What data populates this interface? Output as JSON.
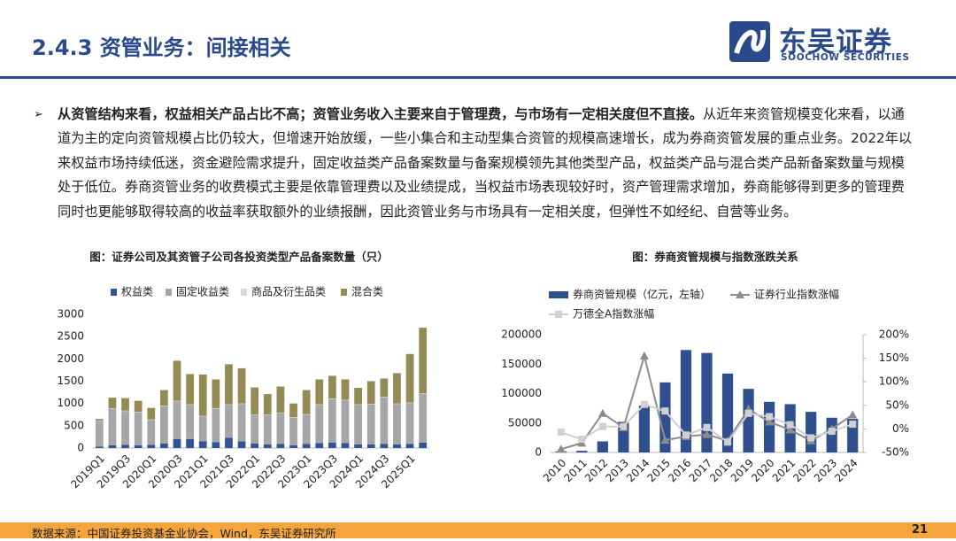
{
  "header": {
    "title": "2.4.3 资管业务：间接相关",
    "logo_cn": "东吴证券",
    "logo_en": "SOOCHOW SECURITIES"
  },
  "body": {
    "bold": "从资管结构来看，权益相关产品占比不高；资管业务收入主要来自于管理费，与市场有一定相关度但不直接。",
    "text": "从近年来资管规模变化来看，以通道为主的定向资管规模占比仍较大，但增速开始放缓，一些小集合和主动型集合资管的规模高速增长，成为券商资管发展的重点业务。2022年以来权益市场持续低迷，资金避险需求提升，固定收益类产品备案数量与备案规模领先其他类型产品，权益类产品与混合类产品新备案数量与规模处于低位。券商资管业务的收费模式主要是依靠管理费以及业绩提成，当权益市场表现较好时，资产管理需求增加，券商能够得到更多的管理费同时也更能够取得较高的收益率获取额外的业绩报酬，因此资管业务与市场具有一定相关度，但弹性不如经纪、自营等业务。"
  },
  "chart_data": [
    {
      "type": "stacked_bar",
      "title": "图：证券公司及其资管子公司各投资类型产品备案数量（只）",
      "categories": [
        "2019Q1",
        null,
        "2019Q3",
        null,
        "2020Q1",
        null,
        "2020Q3",
        null,
        "2021Q1",
        null,
        "2021Q3",
        null,
        "2022Q1",
        null,
        "2022Q3",
        null,
        "2023Q1",
        null,
        "2023Q3",
        null,
        "2024Q1",
        null,
        "2024Q3",
        null,
        "2025Q1",
        null
      ],
      "series": [
        {
          "name": "权益类",
          "color": "#2f5597",
          "values": [
            30,
            60,
            70,
            60,
            70,
            100,
            200,
            200,
            150,
            130,
            230,
            150,
            100,
            80,
            90,
            60,
            90,
            110,
            120,
            110,
            80,
            80,
            90,
            80,
            90,
            120
          ]
        },
        {
          "name": "固定收益类",
          "color": "#a6a6a6",
          "values": [
            570,
            820,
            760,
            740,
            560,
            840,
            850,
            770,
            560,
            750,
            740,
            840,
            640,
            660,
            690,
            620,
            660,
            860,
            980,
            960,
            890,
            900,
            1050,
            910,
            920,
            1100
          ]
        },
        {
          "name": "商品及衍生品类",
          "color": "#d9d9d9",
          "values": [
            10,
            10,
            10,
            10,
            10,
            10,
            10,
            10,
            10,
            10,
            10,
            10,
            10,
            10,
            10,
            10,
            10,
            10,
            10,
            10,
            10,
            10,
            10,
            10,
            10,
            10
          ]
        },
        {
          "name": "混合类",
          "color": "#948a54",
          "values": [
            40,
            240,
            280,
            250,
            260,
            350,
            900,
            680,
            930,
            650,
            900,
            790,
            610,
            460,
            590,
            310,
            540,
            560,
            510,
            460,
            370,
            510,
            410,
            680,
            1090,
            1470
          ]
        }
      ],
      "ylim": [
        0,
        3000
      ],
      "yticks": [
        0,
        500,
        1000,
        1500,
        2000,
        2500,
        3000
      ],
      "legend": "top"
    },
    {
      "type": "combo",
      "title": "图：券商资管规模与指数涨跌关系",
      "categories": [
        "2010",
        "2011",
        "2012",
        "2013",
        "2014",
        "2015",
        "2016",
        "2017",
        "2018",
        "2019",
        "2020",
        "2021",
        "2022",
        "2023",
        "2024"
      ],
      "series": [
        {
          "name": "券商资管规模（亿元，左轴）",
          "type": "bar",
          "color": "#2f4f8f",
          "values": [
            1800,
            2800,
            18900,
            52000,
            79500,
            119000,
            174000,
            169000,
            134000,
            108000,
            86000,
            82000,
            69000,
            59000,
            57000
          ]
        },
        {
          "name": "证券行业指数涨幅",
          "type": "line",
          "marker": "triangle",
          "axis": "y2",
          "color": "#8c8c8c",
          "values": [
            -43,
            -30,
            33,
            3,
            155,
            -24,
            -16,
            -12,
            -25,
            42,
            15,
            -2,
            -25,
            0,
            30
          ]
        },
        {
          "name": "万德全A指数涨幅",
          "type": "line",
          "marker": "square",
          "axis": "y2",
          "color": "#d0d0d0",
          "values": [
            -7,
            -22,
            5,
            5,
            52,
            38,
            -13,
            3,
            -28,
            33,
            26,
            9,
            -19,
            -5,
            10
          ]
        }
      ],
      "ylim": [
        0,
        200000
      ],
      "yticks": [
        0,
        50000,
        100000,
        150000,
        200000
      ],
      "y2lim": [
        -50,
        200
      ],
      "y2ticks": [
        {
          "value": -50,
          "label": "-50%"
        },
        {
          "value": 0,
          "label": "0%"
        },
        {
          "value": 50,
          "label": "50%"
        },
        {
          "value": 100,
          "label": "100%"
        },
        {
          "value": 150,
          "label": "150%"
        },
        {
          "value": 200,
          "label": "200%"
        }
      ],
      "legend": "top"
    }
  ],
  "footer": {
    "source": "数据来源：中国证券投资基金业协会，Wind，东吴证券研究所",
    "page": "21"
  }
}
